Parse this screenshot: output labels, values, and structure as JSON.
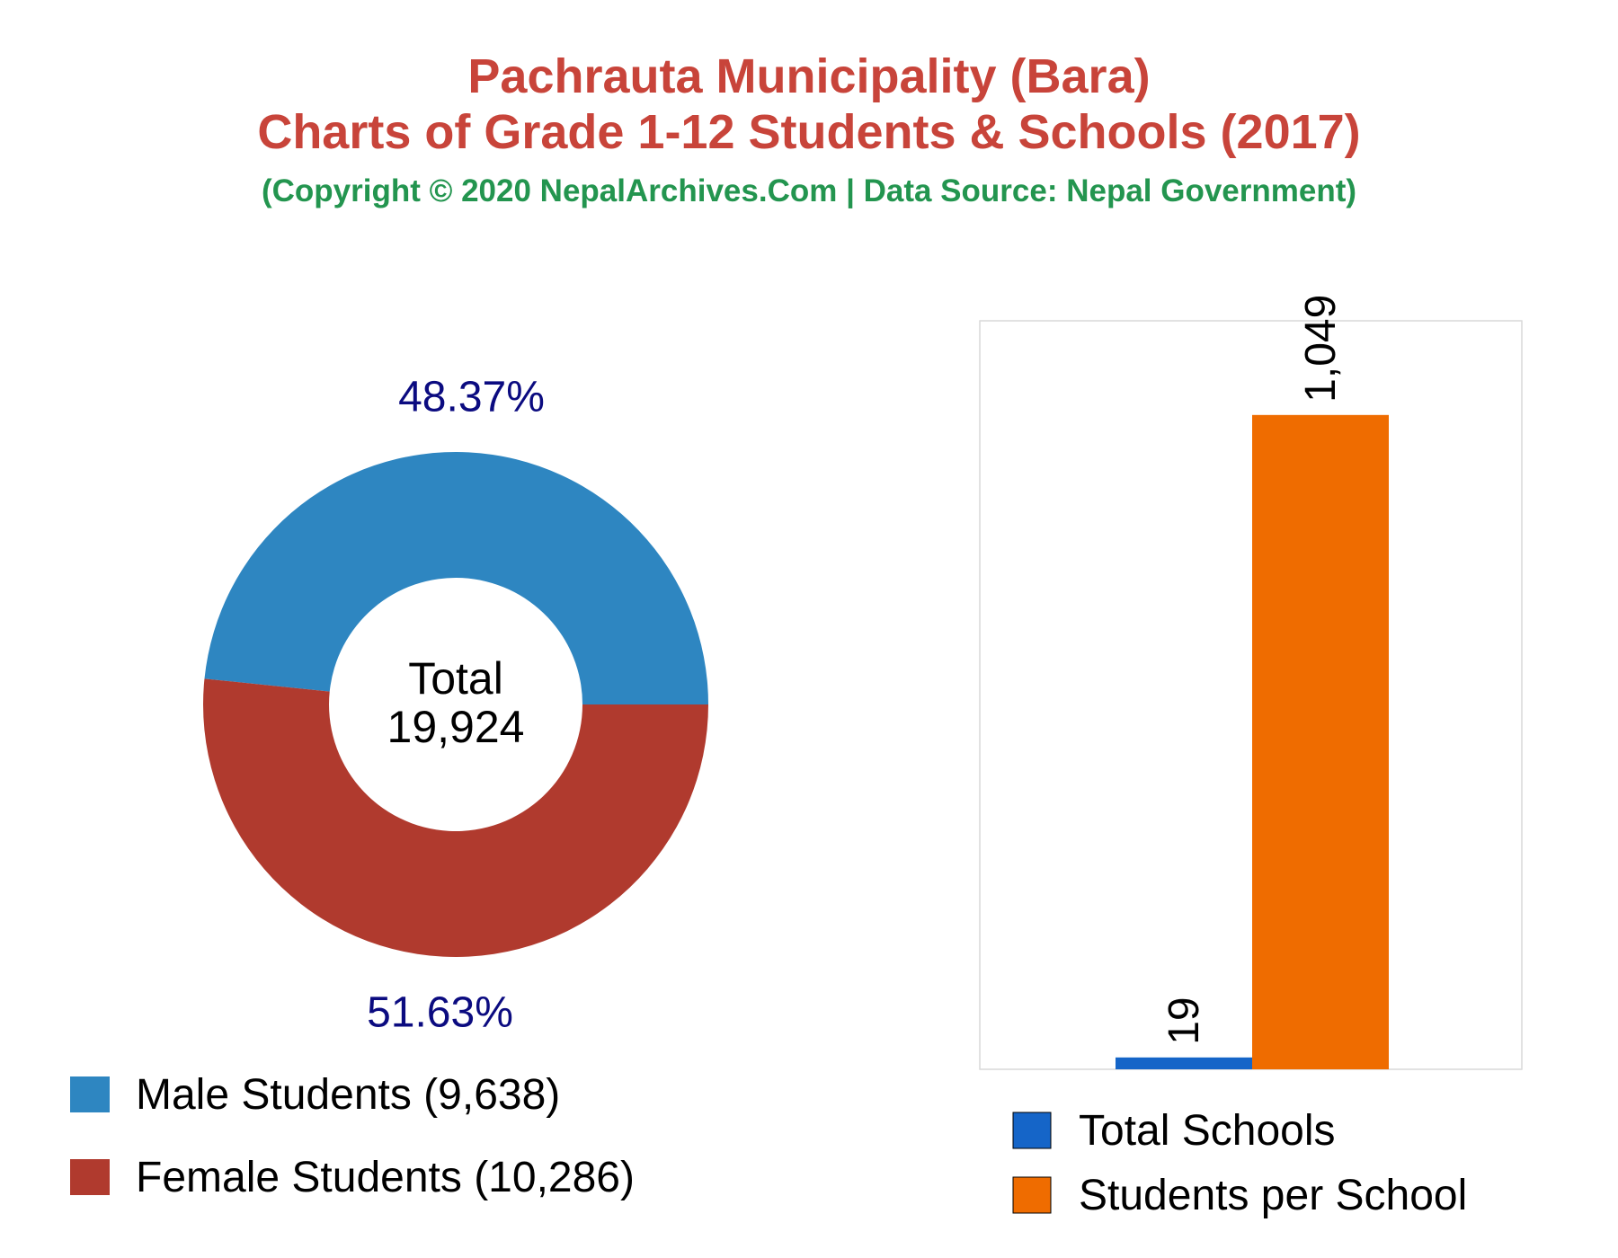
{
  "title": {
    "line1": "Pachrauta Municipality (Bara)",
    "line2": "Charts of Grade 1-12 Students & Schools (2017)",
    "subtitle": "(Copyright © 2020 NepalArchives.Com | Data Source: Nepal Government)"
  },
  "colors": {
    "title": "#c8443a",
    "subtitle": "#23954f",
    "male": "#2e86c1",
    "female": "#b03a2e",
    "schools": "#1565c8",
    "students_per_school": "#ef6c00",
    "pct_label": "#0b0b80"
  },
  "chart_data": [
    {
      "type": "pie",
      "donut": true,
      "center_label": "Total",
      "center_value": "19,924",
      "slices": [
        {
          "name": "Male Students (9,638)",
          "value": 9638,
          "percent_label": "48.37%",
          "color": "#2e86c1"
        },
        {
          "name": "Female Students (10,286)",
          "value": 10286,
          "percent_label": "51.63%",
          "color": "#b03a2e"
        }
      ],
      "legend_position": "bottom-left"
    },
    {
      "type": "bar",
      "categories": [
        "Total Schools",
        "Students per School"
      ],
      "values": [
        19,
        1049
      ],
      "value_labels": [
        "19",
        "1,049"
      ],
      "colors": [
        "#1565c8",
        "#ef6c00"
      ],
      "ylim": [
        0,
        1200
      ],
      "grid": false,
      "legend_position": "bottom"
    }
  ]
}
